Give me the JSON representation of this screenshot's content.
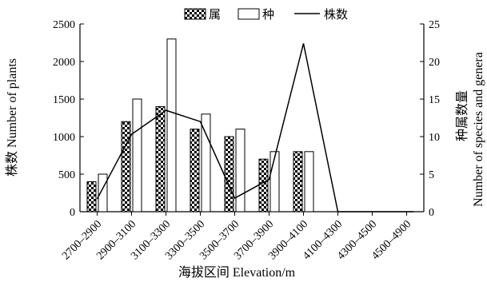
{
  "chart_data": {
    "type": "bar",
    "categories": [
      "2700–2900",
      "2900–3100",
      "3100–3300",
      "3300–3500",
      "3500–3700",
      "3700–3900",
      "3900–4100",
      "4100–4300",
      "4300–4500",
      "4500–4900"
    ],
    "series": [
      {
        "name": "属",
        "type": "bar",
        "axis": "right",
        "pattern": "checker",
        "values": [
          4,
          12,
          14,
          11,
          10,
          7,
          8,
          0,
          0,
          0
        ]
      },
      {
        "name": "种",
        "type": "bar",
        "axis": "right",
        "pattern": "white",
        "values": [
          5,
          15,
          23,
          13,
          11,
          8,
          8,
          0,
          0,
          0
        ]
      },
      {
        "name": "株数",
        "type": "line",
        "axis": "left",
        "values": [
          170,
          1030,
          1350,
          1200,
          180,
          430,
          2240,
          0,
          0,
          0
        ]
      }
    ],
    "xlabel": "海拔区间 Elevation/m",
    "ylabel_left": "株数 Number of plants",
    "ylabel_right": [
      "种属数量",
      "Number of species and genera"
    ],
    "ylim_left": [
      0,
      2500
    ],
    "ylim_right": [
      0,
      25
    ],
    "yticks_left": [
      0,
      500,
      1000,
      1500,
      2000,
      2500
    ],
    "yticks_right": [
      0,
      5,
      10,
      15,
      20,
      25
    ],
    "legend_position": "top-center",
    "grid": false
  }
}
